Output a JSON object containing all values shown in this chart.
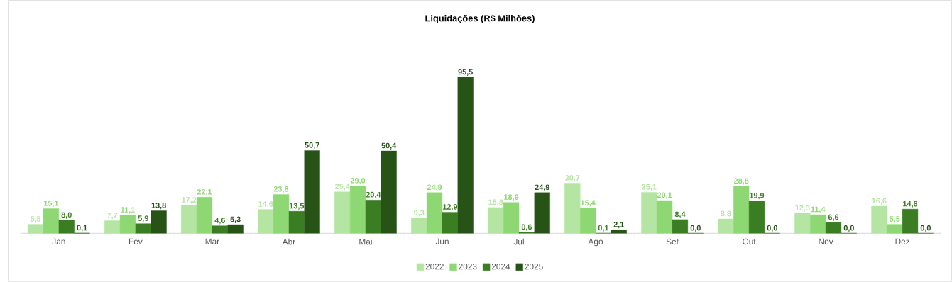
{
  "chart_data": {
    "type": "bar",
    "title": "Liquidações (R$ Milhões)",
    "categories": [
      "Jan",
      "Fev",
      "Mar",
      "Abr",
      "Mai",
      "Jun",
      "Jul",
      "Ago",
      "Set",
      "Out",
      "Nov",
      "Dez"
    ],
    "series": [
      {
        "name": "2022",
        "color": "#b4e5a2",
        "values": [
          5.5,
          7.7,
          17.2,
          14.6,
          25.4,
          9.3,
          15.8,
          30.7,
          25.1,
          8.8,
          12.3,
          16.6
        ],
        "value_labels": [
          "5,5",
          "7,7",
          "17,2",
          "14,6",
          "25,4",
          "9,3",
          "15,8",
          "30,7",
          "25,1",
          "8,8",
          "12,3",
          "16,6"
        ]
      },
      {
        "name": "2023",
        "color": "#8ed873",
        "values": [
          15.1,
          11.1,
          22.1,
          23.8,
          29.0,
          24.9,
          18.9,
          15.4,
          20.1,
          28.8,
          11.4,
          5.5
        ],
        "value_labels": [
          "15,1",
          "11,1",
          "22,1",
          "23,8",
          "29,0",
          "24,9",
          "18,9",
          "15,4",
          "20,1",
          "28,8",
          "11,4",
          "5,5"
        ]
      },
      {
        "name": "2024",
        "color": "#3b7d23",
        "values": [
          8.0,
          5.9,
          4.6,
          13.5,
          20.4,
          12.9,
          0.6,
          0.1,
          8.4,
          19.9,
          6.6,
          14.8
        ],
        "value_labels": [
          "8,0",
          "5,9",
          "4,6",
          "13,5",
          "20,4",
          "12,9",
          "0,6",
          "0,1",
          "8,4",
          "19,9",
          "6,6",
          "14,8"
        ]
      },
      {
        "name": "2025",
        "color": "#275317",
        "values": [
          0.1,
          13.8,
          5.3,
          50.7,
          50.4,
          95.5,
          24.9,
          2.1,
          0.0,
          0.0,
          0.0,
          0.0
        ],
        "value_labels": [
          "0,1",
          "13,8",
          "5,3",
          "50,7",
          "50,4",
          "95,5",
          "24,9",
          "2,1",
          "0,0",
          "0,0",
          "0,0",
          "0,0"
        ]
      }
    ],
    "legend": "bottom",
    "grid": false
  }
}
